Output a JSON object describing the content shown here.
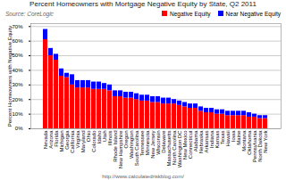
{
  "chart_data": {
    "type": "bar",
    "stacked": true,
    "title": "Percent Homeowners with Mortgage Negative Equity by State, Q2 2011",
    "subtitle": "Source: CoreLogic",
    "ylabel": "Percent Homeowners with Negative Equity",
    "annotations": [
      "http://www.calculatedriskblog.com/"
    ],
    "categories": [
      "Nevada",
      "Arizona",
      "Florida",
      "Michigan",
      "Georgia",
      "California",
      "Virginia",
      "Maryland",
      "Ohio",
      "Colorado",
      "Idaho",
      "Utah",
      "Illinois",
      "Rhode Island",
      "New Hampshire",
      "Oregon",
      "Washington",
      "South Carolina",
      "Tennessee",
      "Minnesota",
      "New Jersey",
      "Wisconsin",
      "Delaware",
      "Massachusetts",
      "North Carolina",
      "Washington DC",
      "New Mexico",
      "Connecticut",
      "Alabama",
      "Nebraska",
      "Arkansas",
      "Indiana",
      "Kansas",
      "Texas",
      "Hawaii",
      "Iowa",
      "Maine",
      "Montana",
      "Oklahoma",
      "Pennsylvania",
      "North Dakota",
      "New York"
    ],
    "series": [
      {
        "name": "Negative Equity",
        "color": "#FF0000",
        "values": [
          61,
          50,
          47,
          36,
          35,
          30,
          28,
          28,
          28,
          27,
          27,
          27,
          26,
          22,
          22,
          21,
          21,
          20,
          19,
          19,
          18,
          18,
          17,
          17,
          17,
          16,
          15,
          14,
          14,
          12,
          11,
          11,
          10,
          10,
          9,
          9,
          9,
          9,
          8,
          8,
          7,
          7
        ]
      },
      {
        "name": "Near Negative Equity",
        "color": "#0000FF",
        "values": [
          7,
          5,
          4,
          5,
          3,
          7,
          5,
          5,
          5,
          5,
          5,
          4,
          4,
          4,
          4,
          4,
          4,
          4,
          4,
          4,
          4,
          4,
          4,
          4,
          3,
          3,
          3,
          3,
          3,
          3,
          3,
          3,
          3,
          3,
          3,
          3,
          3,
          3,
          3,
          2,
          2,
          2
        ]
      }
    ],
    "ylim": [
      0,
      72
    ],
    "yticks": [
      {
        "value": 0,
        "label": "0%"
      },
      {
        "value": 10,
        "label": "10%"
      },
      {
        "value": 20,
        "label": "20%"
      },
      {
        "value": 30,
        "label": "30%"
      },
      {
        "value": 40,
        "label": "40%"
      },
      {
        "value": 50,
        "label": "50%"
      },
      {
        "value": 60,
        "label": "60%"
      },
      {
        "value": 70,
        "label": "70%"
      }
    ],
    "grid": true,
    "legend": "upper right"
  }
}
